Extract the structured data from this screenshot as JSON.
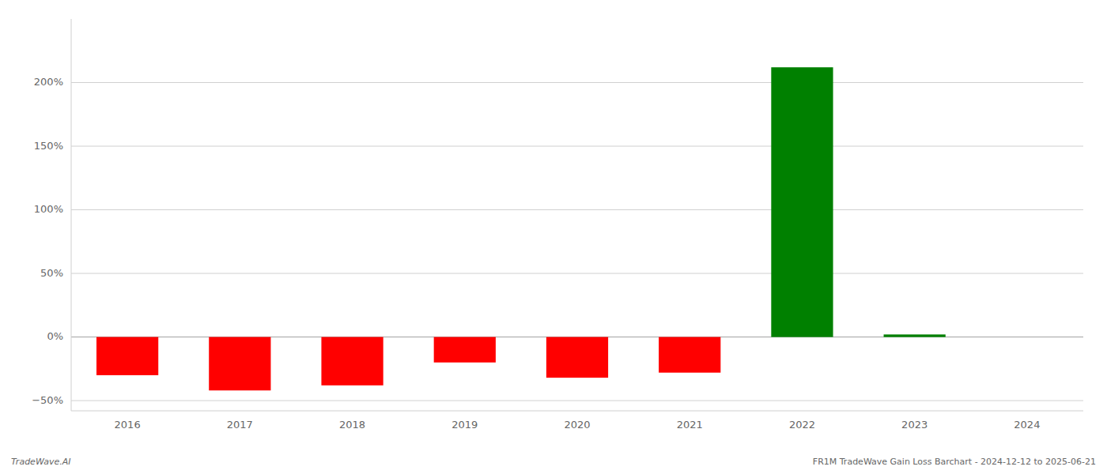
{
  "chart_data": {
    "type": "bar",
    "categories": [
      "2016",
      "2017",
      "2018",
      "2019",
      "2020",
      "2021",
      "2022",
      "2023",
      "2024"
    ],
    "values": [
      -30,
      -42,
      -38,
      -20,
      -32,
      -28,
      212,
      2,
      0
    ],
    "colors": [
      "#ff0000",
      "#ff0000",
      "#ff0000",
      "#ff0000",
      "#ff0000",
      "#ff0000",
      "#008000",
      "#008000",
      "#008000"
    ],
    "ylim": [
      -58,
      250
    ],
    "yticks": [
      {
        "value": -50,
        "label": "−50%"
      },
      {
        "value": 0,
        "label": "0%"
      },
      {
        "value": 50,
        "label": "50%"
      },
      {
        "value": 100,
        "label": "100%"
      },
      {
        "value": 150,
        "label": "150%"
      },
      {
        "value": 200,
        "label": "200%"
      }
    ],
    "grid": true,
    "annotations": [
      "TradeWave.AI",
      "FR1M TradeWave Gain Loss Barchart - 2024-12-12 to 2025-06-21"
    ]
  }
}
